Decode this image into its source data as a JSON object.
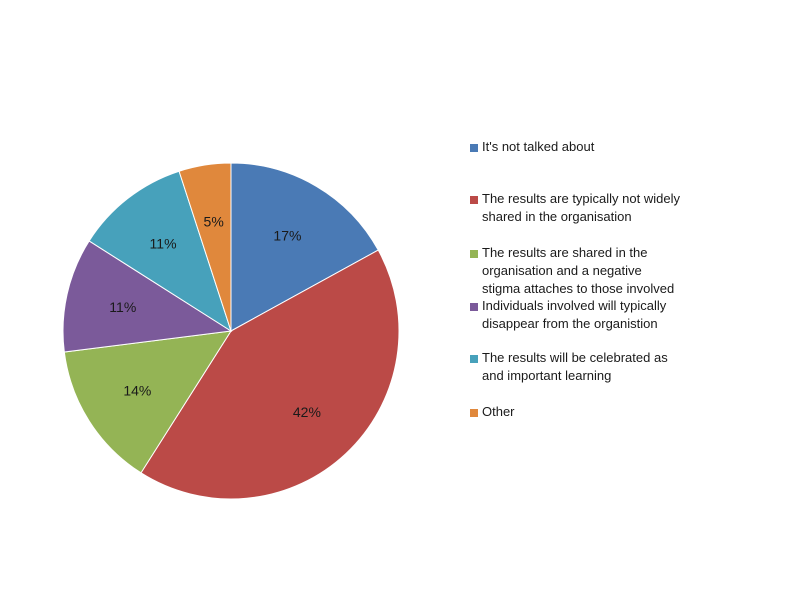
{
  "chart_data": {
    "type": "pie",
    "categories": [
      "It's not talked about",
      "The results are typically not widely shared in the organisation",
      "The results are shared in the organisation and a negative stigma attaches to those involved",
      "Individuals involved will typically disappear from the organistion",
      "The results will be celebrated as and important learning",
      "Other"
    ],
    "legend_lines": [
      "It's not talked about",
      "The results are typically not widely\nshared in the organisation",
      "The results are shared in the\norganisation and a negative\nstigma attaches to those involved",
      "Individuals involved will typically\ndisappear from the organistion",
      "The results will be celebrated as\nand important learning",
      "Other"
    ],
    "values": [
      17,
      42,
      14,
      11,
      11,
      5
    ],
    "data_labels": [
      "17%",
      "42%",
      "14%",
      "11%",
      "11%",
      "5%"
    ],
    "colors": [
      "#4a7ab5",
      "#bb4a47",
      "#94b455",
      "#7b5a9a",
      "#47a1bb",
      "#e0883c"
    ],
    "legend_position": "right",
    "start": "top",
    "direction": "clockwise"
  }
}
